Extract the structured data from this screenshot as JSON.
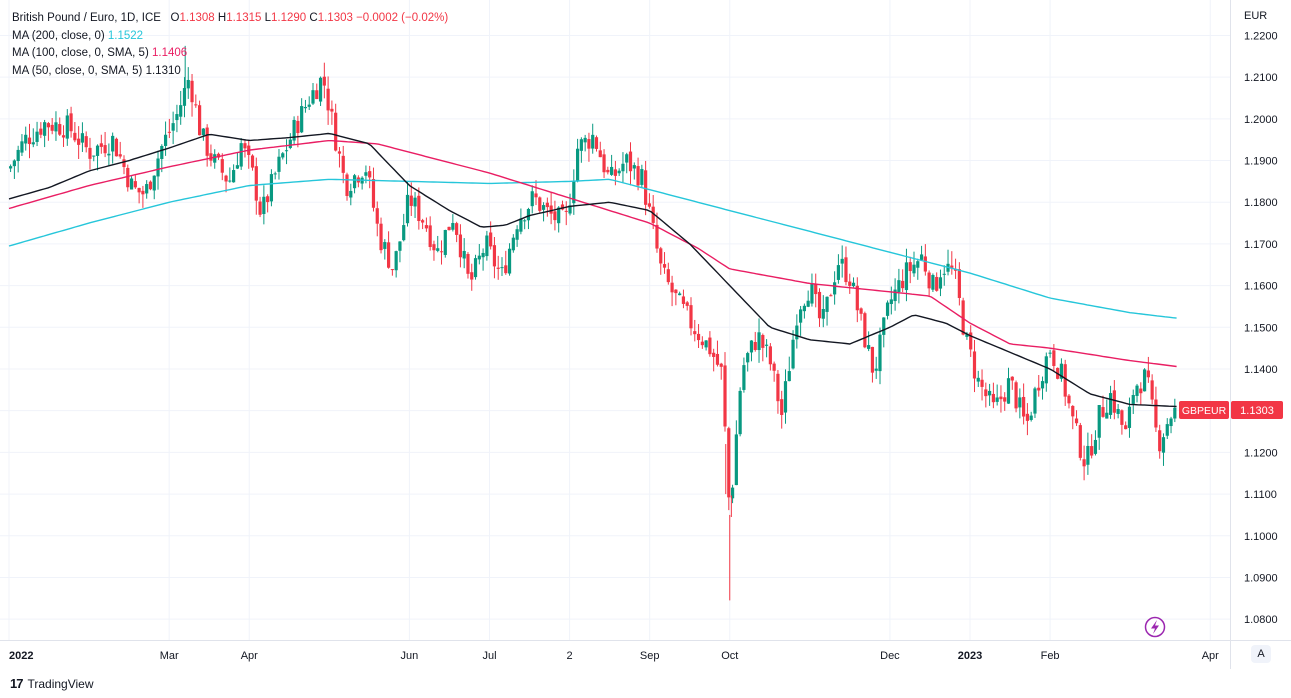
{
  "legend": {
    "title": "British Pound / Euro, 1D, ICE",
    "o_label": "O",
    "o_value": "1.1308",
    "h_label": "H",
    "h_value": "1.1315",
    "l_label": "L",
    "l_value": "1.1290",
    "c_label": "C",
    "c_value": "1.1303",
    "change": "−0.0002 (−0.02%)",
    "ma200_label": "MA (200, close, 0)",
    "ma200_value": "1.1522",
    "ma100_label": "MA (100, close, 0, SMA, 5)",
    "ma100_value": "1.1406",
    "ma50_label": "MA (50, close, 0, SMA, 5)",
    "ma50_value": "1.1310"
  },
  "currency": "EUR",
  "symbol_tag": "GBPEUR",
  "last_price": "1.1303",
  "footer": {
    "brand": "TradingView",
    "logo_glyph": "17"
  },
  "corner_button": "A",
  "chart_data": {
    "type": "candlestick",
    "title": "British Pound / Euro, 1D, ICE",
    "ylim": [
      1.075,
      1.2285
    ],
    "y_ticks": [
      "1.0800",
      "1.0900",
      "1.1000",
      "1.1100",
      "1.1200",
      "1.1300",
      "1.1400",
      "1.1500",
      "1.1600",
      "1.1700",
      "1.1800",
      "1.1900",
      "1.2000",
      "1.2100",
      "1.2200"
    ],
    "x_ticks": [
      {
        "label": "2022",
        "m": 0,
        "bold": true
      },
      {
        "label": "Mar",
        "m": 2,
        "bold": false
      },
      {
        "label": "Apr",
        "m": 3,
        "bold": false
      },
      {
        "label": "Jun",
        "m": 5,
        "bold": false
      },
      {
        "label": "Jul",
        "m": 6,
        "bold": false
      },
      {
        "label": "2",
        "m": 7,
        "bold": false
      },
      {
        "label": "Sep",
        "m": 8,
        "bold": false
      },
      {
        "label": "Oct",
        "m": 9,
        "bold": false
      },
      {
        "label": "Dec",
        "m": 11,
        "bold": false
      },
      {
        "label": "2023",
        "m": 12,
        "bold": true
      },
      {
        "label": "Feb",
        "m": 13,
        "bold": false
      },
      {
        "label": "Apr",
        "m": 15,
        "bold": false
      }
    ],
    "close_path": [
      [
        0,
        1.188
      ],
      [
        0.2,
        1.195
      ],
      [
        0.45,
        1.199
      ],
      [
        0.75,
        1.198
      ],
      [
        1.0,
        1.192
      ],
      [
        1.3,
        1.195
      ],
      [
        1.55,
        1.183
      ],
      [
        1.7,
        1.182
      ],
      [
        1.9,
        1.193
      ],
      [
        2.1,
        1.201
      ],
      [
        2.25,
        1.21
      ],
      [
        2.4,
        1.196
      ],
      [
        2.55,
        1.19
      ],
      [
        2.75,
        1.185
      ],
      [
        2.9,
        1.194
      ],
      [
        3.05,
        1.186
      ],
      [
        3.15,
        1.177
      ],
      [
        3.35,
        1.188
      ],
      [
        3.55,
        1.197
      ],
      [
        3.75,
        1.205
      ],
      [
        3.92,
        1.21
      ],
      [
        4.05,
        1.198
      ],
      [
        4.2,
        1.184
      ],
      [
        4.45,
        1.189
      ],
      [
        4.62,
        1.172
      ],
      [
        4.8,
        1.164
      ],
      [
        5.0,
        1.181
      ],
      [
        5.2,
        1.175
      ],
      [
        5.35,
        1.168
      ],
      [
        5.55,
        1.177
      ],
      [
        5.75,
        1.16
      ],
      [
        5.95,
        1.17
      ],
      [
        6.15,
        1.162
      ],
      [
        6.35,
        1.176
      ],
      [
        6.55,
        1.181
      ],
      [
        6.75,
        1.177
      ],
      [
        6.95,
        1.175
      ],
      [
        7.1,
        1.193
      ],
      [
        7.3,
        1.196
      ],
      [
        7.5,
        1.185
      ],
      [
        7.7,
        1.19
      ],
      [
        7.9,
        1.186
      ],
      [
        8.0,
        1.177
      ],
      [
        8.15,
        1.163
      ],
      [
        8.35,
        1.156
      ],
      [
        8.55,
        1.15
      ],
      [
        8.75,
        1.145
      ],
      [
        8.9,
        1.139
      ],
      [
        9.0,
        1.105
      ],
      [
        9.15,
        1.14
      ],
      [
        9.35,
        1.148
      ],
      [
        9.5,
        1.142
      ],
      [
        9.65,
        1.129
      ],
      [
        9.85,
        1.155
      ],
      [
        10.0,
        1.16
      ],
      [
        10.15,
        1.15
      ],
      [
        10.35,
        1.166
      ],
      [
        10.5,
        1.162
      ],
      [
        10.65,
        1.15
      ],
      [
        10.8,
        1.139
      ],
      [
        11.0,
        1.156
      ],
      [
        11.2,
        1.163
      ],
      [
        11.4,
        1.167
      ],
      [
        11.55,
        1.159
      ],
      [
        11.65,
        1.165
      ],
      [
        11.8,
        1.163
      ],
      [
        11.95,
        1.147
      ],
      [
        12.1,
        1.137
      ],
      [
        12.3,
        1.13
      ],
      [
        12.5,
        1.137
      ],
      [
        12.7,
        1.126
      ],
      [
        12.85,
        1.137
      ],
      [
        13.0,
        1.145
      ],
      [
        13.15,
        1.138
      ],
      [
        13.3,
        1.126
      ],
      [
        13.45,
        1.117
      ],
      [
        13.6,
        1.128
      ],
      [
        13.75,
        1.134
      ],
      [
        13.95,
        1.124
      ],
      [
        14.05,
        1.136
      ],
      [
        14.2,
        1.138
      ],
      [
        14.35,
        1.122
      ],
      [
        14.5,
        1.129
      ],
      [
        14.58,
        1.13
      ]
    ],
    "ma200": [
      [
        0,
        1.1695
      ],
      [
        1,
        1.175
      ],
      [
        2,
        1.18
      ],
      [
        3,
        1.184
      ],
      [
        4,
        1.1855
      ],
      [
        5,
        1.185
      ],
      [
        6,
        1.1845
      ],
      [
        7,
        1.185
      ],
      [
        7.5,
        1.1855
      ],
      [
        8,
        1.183
      ],
      [
        9,
        1.178
      ],
      [
        10,
        1.173
      ],
      [
        11,
        1.168
      ],
      [
        12,
        1.163
      ],
      [
        13,
        1.157
      ],
      [
        14,
        1.1535
      ],
      [
        14.58,
        1.1522
      ]
    ],
    "ma100": [
      [
        0,
        1.1785
      ],
      [
        1,
        1.184
      ],
      [
        2,
        1.1885
      ],
      [
        3,
        1.1925
      ],
      [
        4,
        1.1948
      ],
      [
        4.6,
        1.194
      ],
      [
        5,
        1.192
      ],
      [
        6,
        1.187
      ],
      [
        7,
        1.181
      ],
      [
        8,
        1.175
      ],
      [
        8.6,
        1.169
      ],
      [
        9,
        1.164
      ],
      [
        10,
        1.1605
      ],
      [
        11,
        1.1585
      ],
      [
        11.5,
        1.1575
      ],
      [
        12,
        1.151
      ],
      [
        12.5,
        1.146
      ],
      [
        13,
        1.145
      ],
      [
        14,
        1.142
      ],
      [
        14.58,
        1.1406
      ]
    ],
    "ma50": [
      [
        0,
        1.1808
      ],
      [
        0.5,
        1.1835
      ],
      [
        1,
        1.1875
      ],
      [
        1.5,
        1.19
      ],
      [
        2,
        1.193
      ],
      [
        2.5,
        1.1963
      ],
      [
        3,
        1.1948
      ],
      [
        3.5,
        1.1955
      ],
      [
        4,
        1.1965
      ],
      [
        4.5,
        1.194
      ],
      [
        5,
        1.184
      ],
      [
        5.5,
        1.178
      ],
      [
        5.9,
        1.174
      ],
      [
        6.2,
        1.1745
      ],
      [
        6.5,
        1.1768
      ],
      [
        7,
        1.179
      ],
      [
        7.5,
        1.18
      ],
      [
        8,
        1.178
      ],
      [
        8.5,
        1.17
      ],
      [
        9,
        1.16
      ],
      [
        9.5,
        1.15
      ],
      [
        10,
        1.147
      ],
      [
        10.5,
        1.146
      ],
      [
        11,
        1.15
      ],
      [
        11.3,
        1.153
      ],
      [
        11.7,
        1.151
      ],
      [
        12,
        1.148
      ],
      [
        12.5,
        1.144
      ],
      [
        13,
        1.14
      ],
      [
        13.5,
        1.134
      ],
      [
        14,
        1.1315
      ],
      [
        14.58,
        1.131
      ]
    ],
    "outliers": [
      [
        2.2,
        1.2175
      ],
      [
        9.0,
        1.0845
      ],
      [
        9.02,
        1.1045
      ],
      [
        8.95,
        1.11
      ]
    ]
  }
}
